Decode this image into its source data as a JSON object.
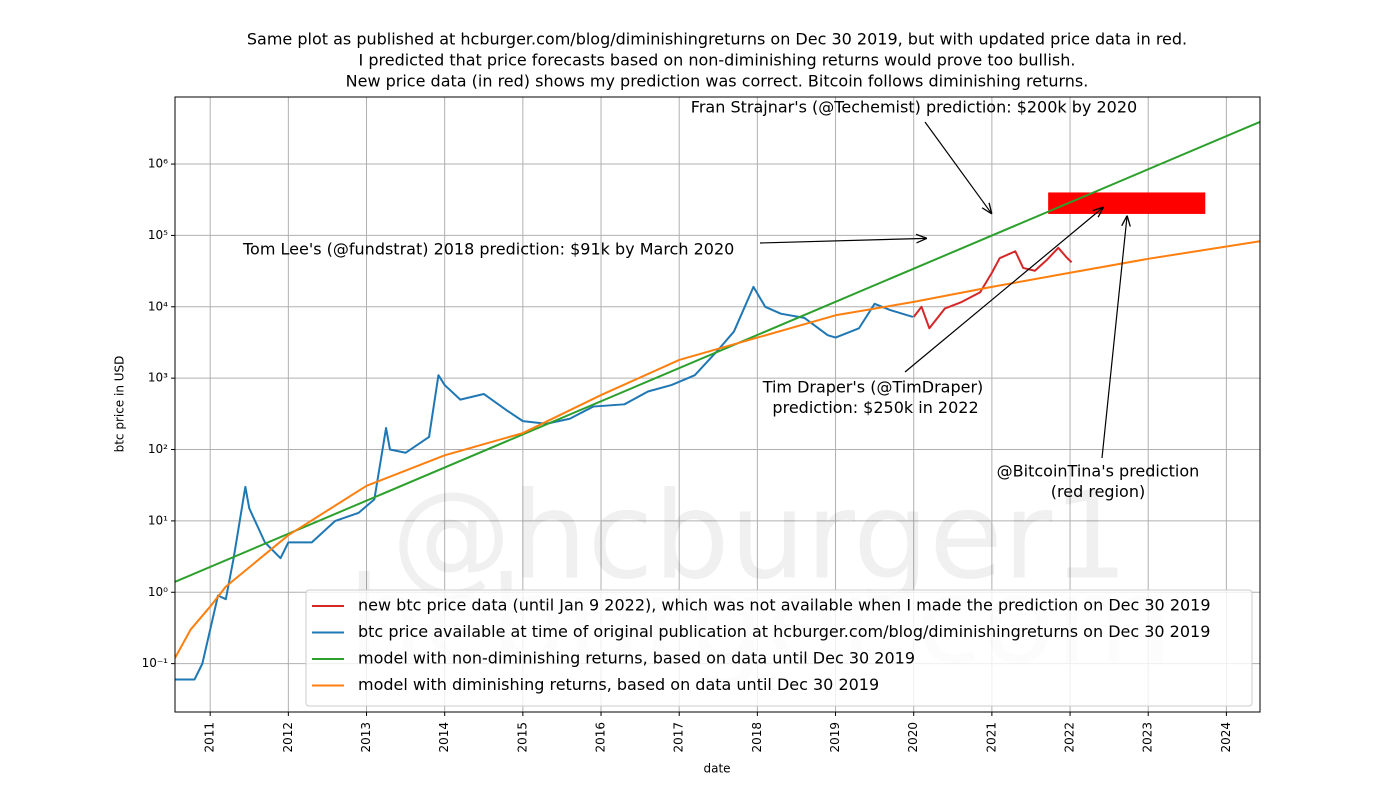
{
  "chart_data": {
    "type": "line",
    "title": [
      "Same plot as published at hcburger.com/blog/diminishingreturns on Dec 30 2019, but with updated price data in red.",
      "I predicted that price forecasts based on non-diminishing returns would prove too bullish.",
      "New price data (in red) shows my prediction was correct. Bitcoin follows diminishing returns."
    ],
    "xlabel": "date",
    "ylabel": "btc price in USD",
    "yscale": "log",
    "grid": true,
    "legend": "lower right",
    "xlim": [
      2010.55,
      2024.43
    ],
    "xticks": [
      2011,
      2012,
      2013,
      2014,
      2015,
      2016,
      2017,
      2018,
      2019,
      2020,
      2021,
      2022,
      2023,
      2024
    ],
    "ylim": [
      0.021,
      8700000
    ],
    "yticks": [
      {
        "value": 0.1,
        "label": "10⁻¹"
      },
      {
        "value": 1,
        "label": "10⁰"
      },
      {
        "value": 10,
        "label": "10¹"
      },
      {
        "value": 100,
        "label": "10²"
      },
      {
        "value": 1000,
        "label": "10³"
      },
      {
        "value": 10000,
        "label": "10⁴"
      },
      {
        "value": 100000,
        "label": "10⁵"
      },
      {
        "value": 1000000,
        "label": "10⁶"
      }
    ],
    "watermark": [
      "@hcburger1",
      "hcburger.com"
    ],
    "series": [
      {
        "name": "new btc price data (until Jan 9 2022), which was not available when I made the prediction on Dec 30 2019",
        "color": "#d62728",
        "x": [
          2020.0,
          2020.1,
          2020.2,
          2020.4,
          2020.6,
          2020.85,
          2021.0,
          2021.1,
          2021.3,
          2021.4,
          2021.55,
          2021.7,
          2021.85,
          2021.95,
          2022.02
        ],
        "values": [
          7200,
          10000,
          5000,
          9500,
          11500,
          16000,
          30000,
          48000,
          60000,
          35000,
          32000,
          45000,
          67000,
          50000,
          42000
        ]
      },
      {
        "name": "btc price available at time of original publication at hcburger.com/blog/diminishingreturns on Dec 30 2019",
        "color": "#1f77b4",
        "x": [
          2010.55,
          2010.8,
          2010.9,
          2011.0,
          2011.1,
          2011.2,
          2011.3,
          2011.45,
          2011.5,
          2011.7,
          2011.9,
          2012.0,
          2012.3,
          2012.6,
          2012.9,
          2013.1,
          2013.25,
          2013.3,
          2013.5,
          2013.8,
          2013.92,
          2014.0,
          2014.2,
          2014.5,
          2014.8,
          2015.0,
          2015.3,
          2015.6,
          2015.9,
          2016.3,
          2016.6,
          2016.9,
          2017.2,
          2017.5,
          2017.7,
          2017.95,
          2018.1,
          2018.3,
          2018.6,
          2018.9,
          2019.0,
          2019.3,
          2019.5,
          2019.7,
          2019.99
        ],
        "values": [
          0.06,
          0.06,
          0.1,
          0.3,
          0.9,
          0.8,
          3,
          30,
          15,
          5,
          3,
          5,
          5,
          10,
          13,
          20,
          200,
          100,
          90,
          150,
          1100,
          800,
          500,
          600,
          350,
          250,
          230,
          270,
          400,
          430,
          650,
          800,
          1100,
          2500,
          4500,
          19000,
          10000,
          8000,
          7000,
          4000,
          3700,
          5000,
          11000,
          9000,
          7200
        ]
      },
      {
        "name": "model with non-diminishing returns, based on data until Dec 30 2019",
        "color": "#2ca02c",
        "x": [
          2010.55,
          2024.43
        ],
        "values": [
          1.4,
          3900000
        ]
      },
      {
        "name": "model with diminishing returns, based on data until Dec 30 2019",
        "color": "#ff7f0e",
        "x": [
          2010.55,
          2010.75,
          2011.0,
          2011.2,
          2012.0,
          2013.0,
          2014.0,
          2015.0,
          2016.0,
          2017.0,
          2018.0,
          2019.0,
          2020.0,
          2021.0,
          2022.0,
          2023.0,
          2024.43
        ],
        "values": [
          0.12,
          0.3,
          0.63,
          1.2,
          6.3,
          31,
          83,
          170,
          580,
          1800,
          3700,
          7600,
          11700,
          19000,
          30000,
          47000,
          83000
        ]
      }
    ],
    "regions": [
      {
        "x": [
          2021.72,
          2023.73
        ],
        "y": [
          200000,
          400000
        ],
        "color": "#ff0000"
      }
    ],
    "annotations": [
      {
        "text": [
          "Fran Strajnar's (@Techemist) prediction: $200k by 2020"
        ],
        "xy": [
          2021,
          200000
        ]
      },
      {
        "text": [
          "Tom Lee's (@fundstrat) 2018 prediction: $91k by March 2020"
        ],
        "xy": [
          2020.17,
          91000
        ]
      },
      {
        "text": [
          "Tim Draper's (@TimDraper)",
          " prediction: $250k in 2022"
        ],
        "xy": [
          2022.43,
          250000
        ]
      },
      {
        "text": [
          "@BitcoinTina's prediction",
          "(red region)"
        ],
        "xy": [
          2022.73,
          190000
        ]
      }
    ]
  }
}
